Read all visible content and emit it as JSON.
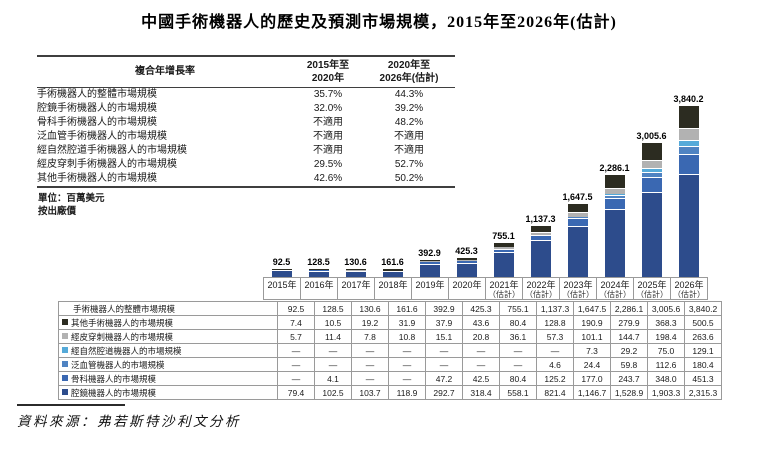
{
  "title": "中國手術機器人的歷史及預測市場規模，2015年至2026年(估計)",
  "cagr_table": {
    "header": {
      "col1": "複合年增長率",
      "col2": [
        "2015年至",
        "2020年"
      ],
      "col3": [
        "2020年至",
        "2026年(估計)"
      ]
    },
    "rows": [
      {
        "label": "手術機器人的整體市場規模",
        "v1": "35.7%",
        "v2": "44.3%"
      },
      {
        "label": "腔鏡手術機器人的市場規模",
        "v1": "32.0%",
        "v2": "39.2%"
      },
      {
        "label": "骨科手術機器人的市場規模",
        "v1": "不適用",
        "v2": "48.2%"
      },
      {
        "label": "泛血管手術機器人的市場規模",
        "v1": "不適用",
        "v2": "不適用"
      },
      {
        "label": "經自然腔道手術機器人的市場規模",
        "v1": "不適用",
        "v2": "不適用"
      },
      {
        "label": "經皮穿刺手術機器人的市場規模",
        "v1": "29.5%",
        "v2": "52.7%"
      },
      {
        "label": "其他手術機器人的市場規模",
        "v1": "42.6%",
        "v2": "50.2%"
      }
    ]
  },
  "unit_note": "單位：百萬美元",
  "price_note": "按出廠價",
  "chart_data": {
    "type": "bar",
    "stacked": true,
    "title": "中國手術機器人的歷史及預測市場規模，2015年至2026年(估計)",
    "ylabel": "百萬美元",
    "grid": false,
    "legend_position": "table-left",
    "categories": [
      {
        "year": "2015年",
        "note": ""
      },
      {
        "year": "2016年",
        "note": ""
      },
      {
        "year": "2017年",
        "note": ""
      },
      {
        "year": "2018年",
        "note": ""
      },
      {
        "year": "2019年",
        "note": ""
      },
      {
        "year": "2020年",
        "note": ""
      },
      {
        "year": "2021年",
        "note": "（估計）"
      },
      {
        "year": "2022年",
        "note": "（估計）"
      },
      {
        "year": "2023年",
        "note": "（估計）"
      },
      {
        "year": "2024年",
        "note": "（估計）"
      },
      {
        "year": "2025年",
        "note": "（估計）"
      },
      {
        "year": "2026年",
        "note": "（估計）"
      }
    ],
    "total_row_label": "手術機器人的整體市場規模",
    "total_labels": [
      "92.5",
      "128.5",
      "130.6",
      "161.6",
      "392.9",
      "425.3",
      "755.1",
      "1,137.3",
      "1,647.5",
      "2,286.1",
      "3,005.6",
      "3,840.2"
    ],
    "series": [
      {
        "name": "其他手術機器人的市場規模",
        "color": "#2c2c21",
        "cells": [
          "7.4",
          "10.5",
          "19.2",
          "31.9",
          "37.9",
          "43.6",
          "80.4",
          "128.8",
          "190.9",
          "279.9",
          "368.3",
          "500.5"
        ]
      },
      {
        "name": "經皮穿刺機器人的市場規模",
        "color": "#b2b2b2",
        "cells": [
          "5.7",
          "11.4",
          "7.8",
          "10.8",
          "15.1",
          "20.8",
          "36.1",
          "57.3",
          "101.1",
          "144.7",
          "198.4",
          "263.6"
        ]
      },
      {
        "name": "經自然腔道機器人的市場規模",
        "color": "#55aad9",
        "cells": [
          "—",
          "—",
          "—",
          "—",
          "—",
          "—",
          "—",
          "—",
          "7.3",
          "29.2",
          "75.0",
          "129.1"
        ]
      },
      {
        "name": "泛血管機器人的市場規模",
        "color": "#4f83c2",
        "cells": [
          "—",
          "—",
          "—",
          "—",
          "—",
          "—",
          "—",
          "4.6",
          "24.4",
          "59.8",
          "112.6",
          "180.4"
        ]
      },
      {
        "name": "骨科機器人的市場規模",
        "color": "#3a68b2",
        "cells": [
          "—",
          "4.1",
          "—",
          "—",
          "47.2",
          "42.5",
          "80.4",
          "125.2",
          "177.0",
          "243.7",
          "348.0",
          "451.3"
        ]
      },
      {
        "name": "腔鏡機器人的市場規模",
        "color": "#2d4c8c",
        "cells": [
          "79.4",
          "102.5",
          "103.7",
          "118.9",
          "292.7",
          "318.4",
          "558.1",
          "821.4",
          "1,146.7",
          "1,528.9",
          "1,903.3",
          "2,315.3"
        ]
      }
    ]
  },
  "source": "資料來源：弗若斯特沙利文分析"
}
